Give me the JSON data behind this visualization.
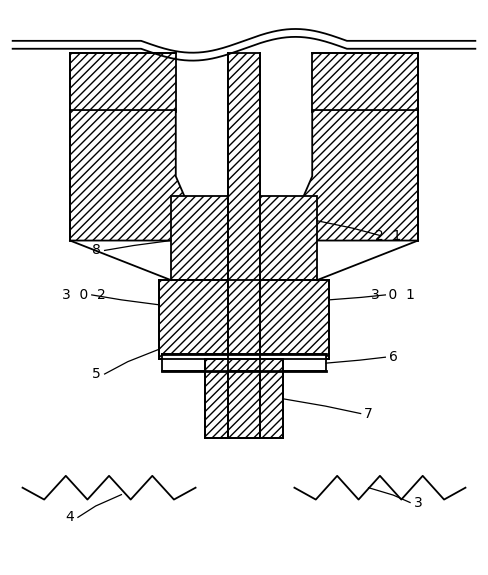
{
  "bg_color": "#ffffff",
  "line_color": "#000000",
  "fig_width": 4.88,
  "fig_height": 5.75,
  "dpi": 100
}
